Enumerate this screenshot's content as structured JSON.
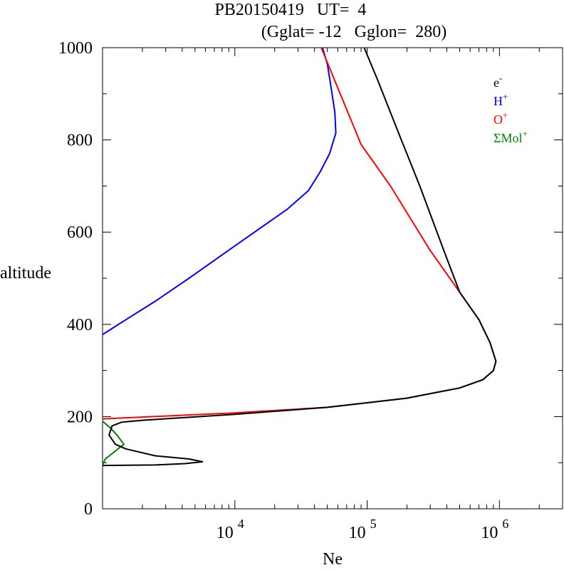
{
  "header": {
    "title_line1": "PB20150419   UT=  4",
    "title_line2": "(Gglat= -12   Gglon=  280)"
  },
  "chart_data": {
    "type": "line",
    "xlabel": "Ne",
    "ylabel": "altitude",
    "x_scale": "log",
    "xlim": [
      1000,
      3000000
    ],
    "ylim": [
      0,
      1000
    ],
    "y_ticks": [
      0,
      200,
      400,
      600,
      800,
      1000
    ],
    "x_tick_labels": [
      {
        "value": 10000,
        "base": "10",
        "exp": "4"
      },
      {
        "value": 100000,
        "base": "10",
        "exp": "5"
      },
      {
        "value": 1000000,
        "base": "10",
        "exp": "6"
      }
    ],
    "legend_position": "top-right",
    "legend": [
      {
        "base": "e",
        "sup": "-",
        "color": "#000000"
      },
      {
        "base": "H",
        "sup": "+",
        "color": "#0000ff"
      },
      {
        "base": "O",
        "sup": "+",
        "color": "#ff0000"
      },
      {
        "base": "ΣMol",
        "sup": "+",
        "color": "#008000"
      }
    ],
    "series": [
      {
        "key": "hplus",
        "color": "#0000ff",
        "points": [
          [
            1000,
            378
          ],
          [
            1500,
            410
          ],
          [
            2500,
            450
          ],
          [
            4500,
            500
          ],
          [
            10000,
            570
          ],
          [
            25000,
            650
          ],
          [
            36000,
            690
          ],
          [
            44000,
            730
          ],
          [
            52000,
            770
          ],
          [
            58000,
            815
          ],
          [
            57000,
            860
          ],
          [
            53000,
            920
          ],
          [
            50000,
            965
          ],
          [
            46000,
            1000
          ]
        ]
      },
      {
        "key": "mol",
        "color": "#008000",
        "points": [
          [
            1000,
            190
          ],
          [
            1150,
            175
          ],
          [
            1300,
            158
          ],
          [
            1450,
            140
          ],
          [
            1050,
            108
          ],
          [
            1000,
            95
          ]
        ]
      },
      {
        "key": "oplus",
        "color": "#ff0000",
        "points": [
          [
            1000,
            195
          ],
          [
            10000,
            208
          ],
          [
            50000,
            220
          ],
          [
            200000,
            240
          ],
          [
            500000,
            262
          ],
          [
            750000,
            280
          ],
          [
            900000,
            300
          ],
          [
            940000,
            320
          ],
          [
            850000,
            360
          ],
          [
            700000,
            410
          ],
          [
            500000,
            470
          ],
          [
            300000,
            560
          ],
          [
            150000,
            700
          ],
          [
            90000,
            790
          ],
          [
            45000,
            1000
          ]
        ]
      },
      {
        "key": "electron",
        "color": "#000000",
        "points": [
          [
            1000,
            94
          ],
          [
            2500,
            95
          ],
          [
            4200,
            98
          ],
          [
            5700,
            102
          ],
          [
            4500,
            108
          ],
          [
            2500,
            115
          ],
          [
            1500,
            130
          ],
          [
            1250,
            140
          ],
          [
            1120,
            160
          ],
          [
            1180,
            180
          ],
          [
            1400,
            188
          ],
          [
            2000,
            192
          ],
          [
            10000,
            205
          ],
          [
            50000,
            220
          ],
          [
            200000,
            240
          ],
          [
            500000,
            262
          ],
          [
            750000,
            280
          ],
          [
            900000,
            300
          ],
          [
            940000,
            320
          ],
          [
            850000,
            360
          ],
          [
            700000,
            410
          ],
          [
            500000,
            470
          ],
          [
            380000,
            560
          ],
          [
            250000,
            700
          ],
          [
            170000,
            820
          ],
          [
            120000,
            930
          ],
          [
            95000,
            1000
          ]
        ]
      }
    ]
  }
}
